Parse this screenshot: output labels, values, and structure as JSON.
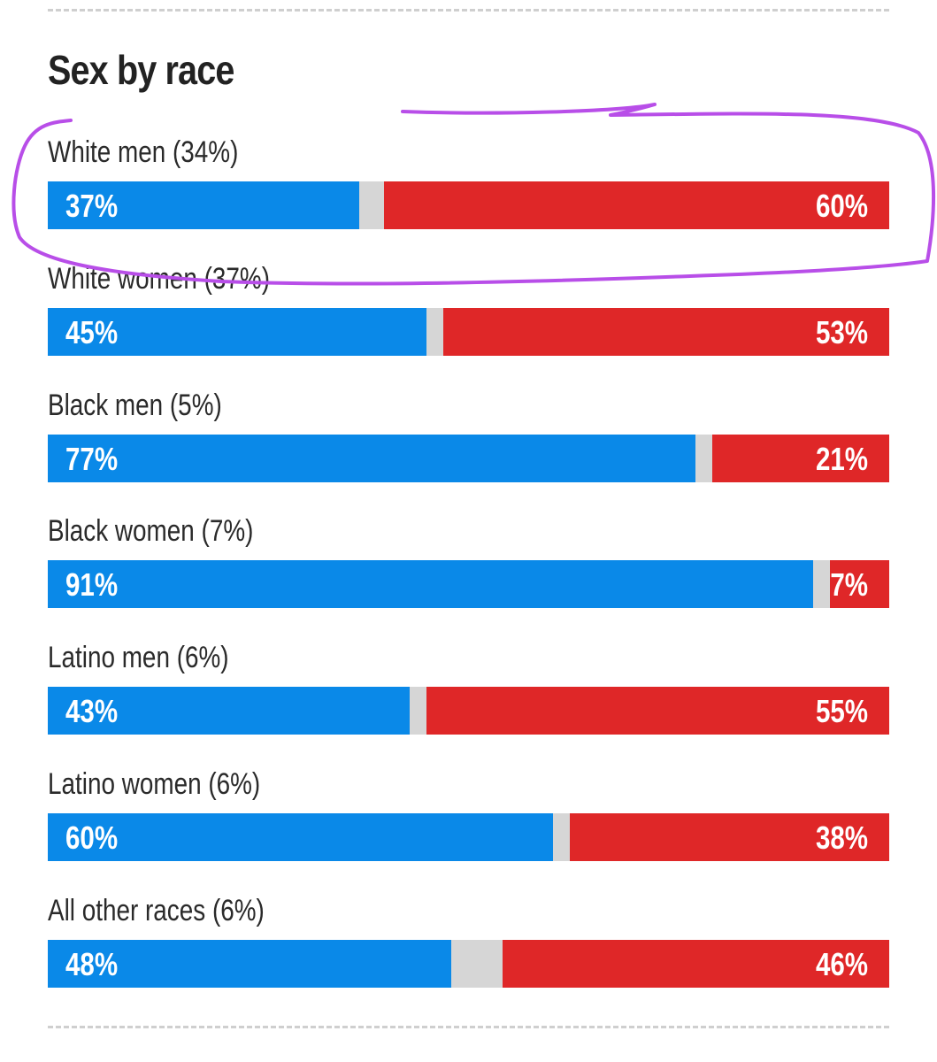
{
  "colors": {
    "dem": "#0a89e8",
    "rep": "#df2728",
    "other": "#d6d6d6",
    "annotation": "#b84ee8"
  },
  "chart_data": {
    "type": "bar",
    "stacked": true,
    "orientation": "horizontal",
    "title": "Sex by race",
    "categories": [
      "White men (34%)",
      "White women (37%)",
      "Black men (5%)",
      "Black women (7%)",
      "Latino men (6%)",
      "Latino women (6%)",
      "All other races (6%)"
    ],
    "series": [
      {
        "name": "blue",
        "values": [
          37,
          45,
          77,
          91,
          43,
          60,
          48
        ],
        "labels": [
          "37%",
          "45%",
          "77%",
          "91%",
          "43%",
          "60%",
          "48%"
        ]
      },
      {
        "name": "red",
        "values": [
          60,
          53,
          21,
          7,
          55,
          38,
          46
        ],
        "labels": [
          "60%",
          "53%",
          "21%",
          "7%",
          "55%",
          "38%",
          "46%"
        ]
      }
    ],
    "xlim": [
      0,
      100
    ],
    "annotation": "hand-drawn circle around White men row"
  }
}
